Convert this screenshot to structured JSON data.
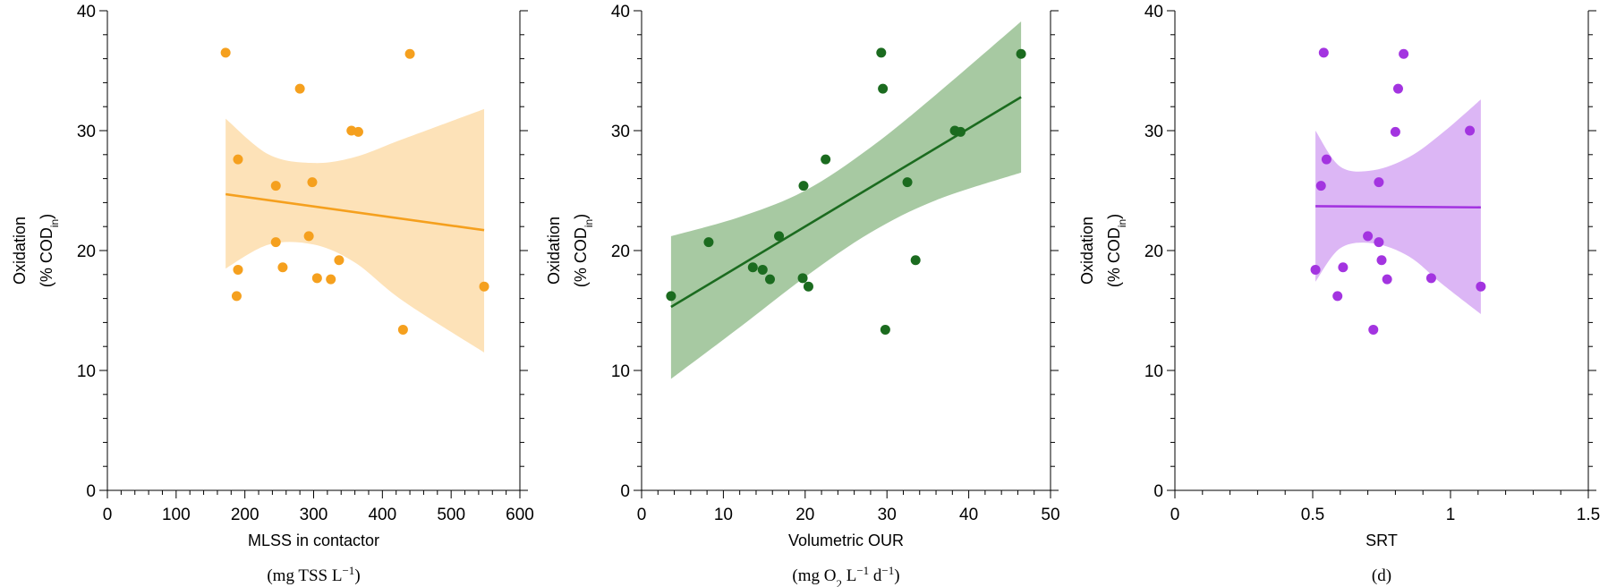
{
  "chart_data": [
    {
      "type": "scatter",
      "xlabel": "MLSS in contactor",
      "xunit": [
        "(mg TSS L",
        "−1",
        ")"
      ],
      "ylabel": "Oxidation",
      "yunit": [
        "(% COD",
        "in",
        ")"
      ],
      "xlim": [
        0,
        600
      ],
      "ylim": [
        0,
        40
      ],
      "xticks": [
        0,
        100,
        200,
        300,
        400,
        500,
        600
      ],
      "xtick_labels": [
        "0",
        "100",
        "200",
        "300",
        "400",
        "500",
        "600"
      ],
      "yticks": [
        0,
        10,
        20,
        30,
        40
      ],
      "ytick_labels": [
        "0",
        "10",
        "20",
        "30",
        "40"
      ],
      "color": "#f5a01e",
      "band_color": "#fde2b8",
      "points": [
        [
          172,
          36.5
        ],
        [
          440,
          36.4
        ],
        [
          280,
          33.5
        ],
        [
          355,
          30.0
        ],
        [
          365,
          29.9
        ],
        [
          190,
          27.6
        ],
        [
          245,
          25.4
        ],
        [
          298,
          25.7
        ],
        [
          245,
          20.7
        ],
        [
          293,
          21.2
        ],
        [
          190,
          18.4
        ],
        [
          255,
          18.6
        ],
        [
          337,
          19.2
        ],
        [
          305,
          17.7
        ],
        [
          325,
          17.6
        ],
        [
          548,
          17.0
        ],
        [
          188,
          16.2
        ],
        [
          430,
          13.4
        ]
      ],
      "fit": {
        "x": [
          172,
          548
        ],
        "y": [
          24.7,
          21.7
        ]
      },
      "band": {
        "x": [
          172,
          235,
          300,
          360,
          430,
          548
        ],
        "upper": [
          31.0,
          28.0,
          27.3,
          27.8,
          29.3,
          31.8
        ],
        "lower": [
          18.5,
          20.5,
          20.5,
          19.0,
          15.8,
          11.5
        ]
      }
    },
    {
      "type": "scatter",
      "xlabel": "Volumetric OUR",
      "xunit": [
        "(mg O",
        "2",
        " L",
        "−1",
        " d",
        "−1",
        ")"
      ],
      "ylabel": "Oxidation",
      "yunit": [
        "(% COD",
        "in",
        ")"
      ],
      "xlim": [
        0,
        50
      ],
      "ylim": [
        0,
        40
      ],
      "xticks": [
        0,
        10,
        20,
        30,
        40,
        50
      ],
      "xtick_labels": [
        "0",
        "10",
        "20",
        "30",
        "40",
        "50"
      ],
      "yticks": [
        0,
        10,
        20,
        30,
        40
      ],
      "ytick_labels": [
        "0",
        "10",
        "20",
        "30",
        "40"
      ],
      "color": "#1b6b1f",
      "band_color": "#a7c9a2",
      "points": [
        [
          29.3,
          36.5
        ],
        [
          46.4,
          36.4
        ],
        [
          29.5,
          33.5
        ],
        [
          38.3,
          30.0
        ],
        [
          39.0,
          29.9
        ],
        [
          22.5,
          27.6
        ],
        [
          19.8,
          25.4
        ],
        [
          32.5,
          25.7
        ],
        [
          8.2,
          20.7
        ],
        [
          16.8,
          21.2
        ],
        [
          14.8,
          18.4
        ],
        [
          13.6,
          18.6
        ],
        [
          33.5,
          19.2
        ],
        [
          19.7,
          17.7
        ],
        [
          15.7,
          17.6
        ],
        [
          20.4,
          17.0
        ],
        [
          3.6,
          16.2
        ],
        [
          29.8,
          13.4
        ]
      ],
      "fit": {
        "x": [
          3.6,
          46.4
        ],
        "y": [
          15.3,
          32.8
        ]
      },
      "band": {
        "x": [
          3.6,
          12,
          20,
          28,
          36,
          46.4
        ],
        "upper": [
          21.2,
          22.8,
          25.0,
          28.6,
          33.0,
          39.1
        ],
        "lower": [
          9.3,
          13.6,
          17.8,
          21.5,
          24.2,
          26.5
        ]
      }
    },
    {
      "type": "scatter",
      "xlabel": "SRT",
      "xunit": [
        "(d)"
      ],
      "ylabel": "Oxidation",
      "yunit": [
        "(% COD",
        "in",
        ")"
      ],
      "xlim": [
        0,
        1.5
      ],
      "ylim": [
        0,
        40
      ],
      "xticks": [
        0,
        0.5,
        1,
        1.5
      ],
      "xtick_labels": [
        "0",
        "0.5",
        "1",
        "1.5"
      ],
      "yticks": [
        0,
        10,
        20,
        30,
        40
      ],
      "ytick_labels": [
        "0",
        "10",
        "20",
        "30",
        "40"
      ],
      "color": "#a334e0",
      "band_color": "#dcb6f5",
      "points": [
        [
          0.54,
          36.5
        ],
        [
          0.83,
          36.4
        ],
        [
          0.81,
          33.5
        ],
        [
          1.07,
          30.0
        ],
        [
          0.8,
          29.9
        ],
        [
          0.55,
          27.6
        ],
        [
          0.53,
          25.4
        ],
        [
          0.74,
          25.7
        ],
        [
          0.74,
          20.7
        ],
        [
          0.7,
          21.2
        ],
        [
          0.51,
          18.4
        ],
        [
          0.61,
          18.6
        ],
        [
          0.75,
          19.2
        ],
        [
          0.93,
          17.7
        ],
        [
          0.77,
          17.6
        ],
        [
          1.11,
          17.0
        ],
        [
          0.59,
          16.2
        ],
        [
          0.72,
          13.4
        ]
      ],
      "fit": {
        "x": [
          0.51,
          1.11
        ],
        "y": [
          23.7,
          23.6
        ]
      },
      "band": {
        "x": [
          0.51,
          0.6,
          0.72,
          0.85,
          0.97,
          1.11
        ],
        "upper": [
          30.0,
          27.0,
          26.7,
          27.8,
          29.8,
          32.6
        ],
        "lower": [
          17.4,
          20.2,
          20.6,
          19.5,
          17.2,
          14.7
        ]
      }
    }
  ]
}
